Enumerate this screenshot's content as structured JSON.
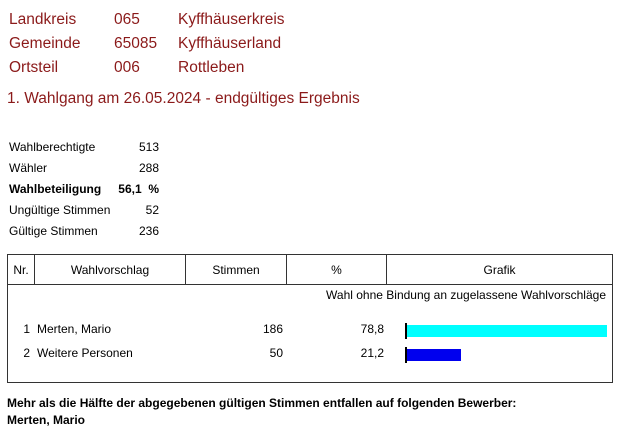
{
  "header": {
    "rows": [
      {
        "label": "Landkreis",
        "code": "065",
        "name": "Kyffhäuserkreis"
      },
      {
        "label": "Gemeinde",
        "code": "65085",
        "name": "Kyffhäuserland"
      },
      {
        "label": "Ortsteil",
        "code": "006",
        "name": "Rottleben"
      }
    ],
    "title": "1. Wahlgang am 26.05.2024 - endgültiges Ergebnis"
  },
  "stats": [
    {
      "label": "Wahlberechtigte",
      "value": "513",
      "bold": false
    },
    {
      "label": "Wähler",
      "value": "288",
      "bold": false
    },
    {
      "label": "Wahlbeteiligung",
      "value": "56,1  %",
      "bold": true
    },
    {
      "label": "Ungültige Stimmen",
      "value": "52",
      "bold": false
    },
    {
      "label": "Gültige Stimmen",
      "value": "236",
      "bold": false
    }
  ],
  "table": {
    "headers": {
      "nr": "Nr.",
      "vorschlag": "Wahlvorschlag",
      "stimmen": "Stimmen",
      "pct": "%",
      "grafik": "Grafik"
    },
    "note": "Wahl ohne Bindung an zugelassene Wahlvorschläge",
    "rows": [
      {
        "nr": "1",
        "name": "Merten, Mario",
        "votes": "186",
        "pct": "78,8",
        "share": 78.8,
        "color": "#00ffff"
      },
      {
        "nr": "2",
        "name": "Weitere Personen",
        "votes": "50",
        "pct": "21,2",
        "share": 21.2,
        "color": "#0000ee"
      }
    ]
  },
  "footer": {
    "line1": "Mehr als die Hälfte der abgegebenen gültigen Stimmen entfallen auf folgenden Bewerber:",
    "line2": "Merten, Mario"
  }
}
